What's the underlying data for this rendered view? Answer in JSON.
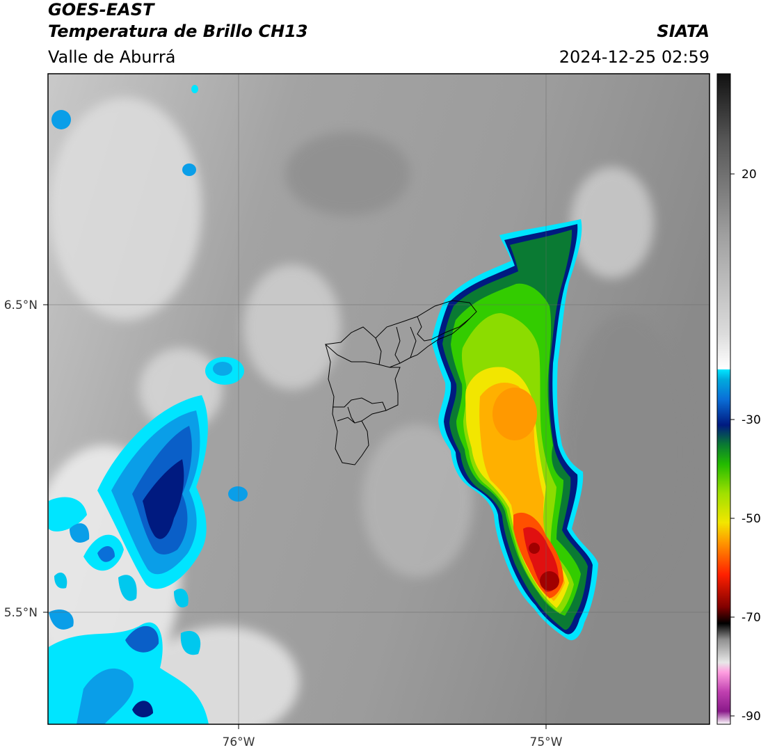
{
  "header": {
    "satellite": "GOES-EAST",
    "product": "Temperatura de Brillo CH13",
    "region": "Valle de Aburrá",
    "organization": "SIATA",
    "datetime": "2024-12-25 02:59"
  },
  "map": {
    "lat_labels": [
      "6.5°N",
      "5.5°N"
    ],
    "lon_labels": [
      "76°W",
      "75°W"
    ]
  },
  "colorbar": {
    "tick_labels": [
      "20",
      "-30",
      "-50",
      "-70",
      "-90"
    ]
  },
  "colors": {
    "cold_core": "#e01010",
    "orange": "#ff9900",
    "yellow": "#f2e600",
    "green": "#33cc00",
    "dark_green": "#0a7a33",
    "navy": "#001a80",
    "blue": "#0a6fd8",
    "cyan": "#00e5ff",
    "background_gray": "#9a9a9a",
    "light_gray": "#e8e8e8"
  }
}
